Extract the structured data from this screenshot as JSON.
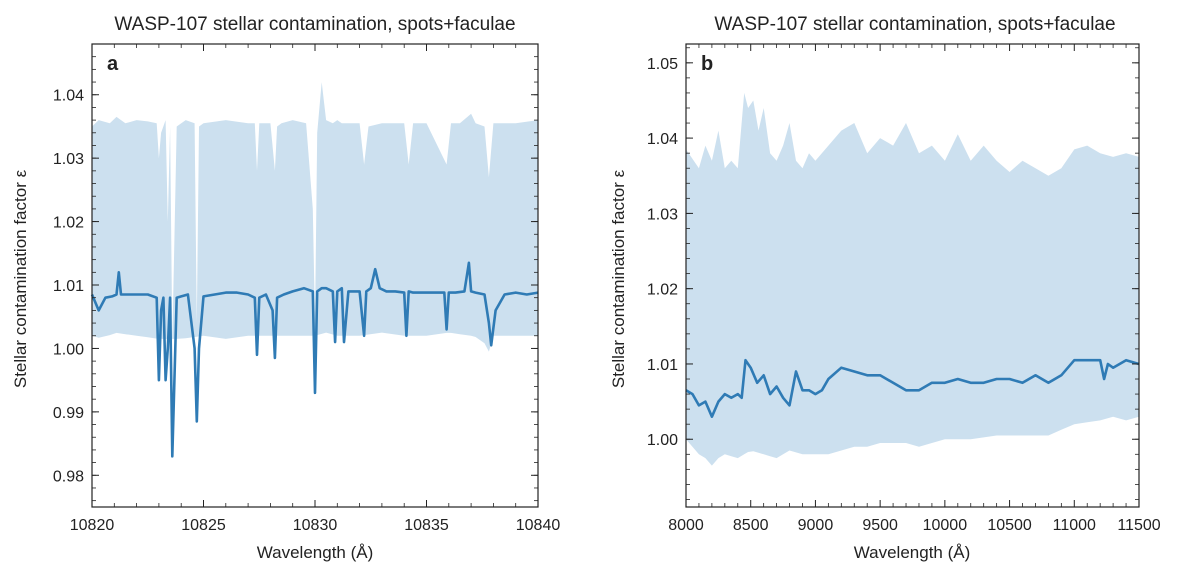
{
  "colors": {
    "band": "#cce0ef",
    "line": "#2f7bb5",
    "axis": "#222222"
  },
  "chart_data": [
    {
      "type": "line",
      "panel_label": "a",
      "title": "WASP-107 stellar contamination, spots+faculae",
      "xlabel": "Wavelength (Å)",
      "ylabel": "Stellar contamination factor ε",
      "xlim": [
        10820,
        10840
      ],
      "ylim": [
        0.975,
        1.048
      ],
      "xticks": [
        10820,
        10825,
        10830,
        10835,
        10840
      ],
      "yticks": [
        "0.98",
        "0.99",
        "1.00",
        "1.01",
        "1.02",
        "1.03",
        "1.04"
      ],
      "grid": false,
      "series": [
        {
          "role": "median",
          "x": [
            10820,
            10820.3,
            10820.6,
            10820.9,
            10821.1,
            10821.2,
            10821.3,
            10821.5,
            10822,
            10822.5,
            10822.9,
            10823.0,
            10823.1,
            10823.2,
            10823.3,
            10823.4,
            10823.5,
            10823.6,
            10823.8,
            10824,
            10824.3,
            10824.6,
            10824.7,
            10824.8,
            10825,
            10825.5,
            10826,
            10826.5,
            10827,
            10827.3,
            10827.4,
            10827.5,
            10827.8,
            10828.1,
            10828.2,
            10828.3,
            10828.6,
            10829,
            10829.5,
            10829.9,
            10830.0,
            10830.1,
            10830.3,
            10830.5,
            10830.8,
            10830.9,
            10831.0,
            10831.2,
            10831.3,
            10831.5,
            10832,
            10832.2,
            10832.3,
            10832.5,
            10832.7,
            10832.9,
            10833.2,
            10833.6,
            10834.0,
            10834.1,
            10834.2,
            10834.4,
            10834.8,
            10835.2,
            10835.8,
            10835.9,
            10836.0,
            10836.3,
            10836.7,
            10836.9,
            10837.0,
            10837.2,
            10837.6,
            10837.8,
            10837.9,
            10838.1,
            10838.5,
            10839,
            10839.5,
            10840
          ],
          "y": [
            1.0085,
            1.006,
            1.008,
            1.0082,
            1.0085,
            1.012,
            1.0085,
            1.0085,
            1.0085,
            1.0085,
            1.008,
            0.995,
            1.006,
            1.008,
            0.995,
            1.0,
            1.008,
            0.983,
            1.008,
            1.0082,
            1.0085,
            1.0,
            0.9885,
            1.0,
            1.0082,
            1.0085,
            1.0088,
            1.0088,
            1.0085,
            1.008,
            0.999,
            1.008,
            1.0085,
            1.006,
            0.9985,
            1.008,
            1.0085,
            1.009,
            1.0095,
            1.009,
            0.993,
            1.009,
            1.0095,
            1.0095,
            1.009,
            1.001,
            1.009,
            1.0095,
            1.001,
            1.009,
            1.009,
            1.002,
            1.009,
            1.0095,
            1.0125,
            1.0095,
            1.009,
            1.009,
            1.0088,
            1.002,
            1.009,
            1.0088,
            1.0088,
            1.0088,
            1.0088,
            1.003,
            1.0088,
            1.0088,
            1.009,
            1.0135,
            1.009,
            1.0088,
            1.0085,
            1.004,
            1.0005,
            1.006,
            1.0085,
            1.0088,
            1.0085,
            1.0088
          ]
        },
        {
          "role": "band_upper",
          "x": [
            10820,
            10820.3,
            10820.8,
            10821.1,
            10821.5,
            10822,
            10822.5,
            10822.9,
            10823.0,
            10823.1,
            10823.3,
            10823.4,
            10823.5,
            10823.6,
            10823.8,
            10824.2,
            10824.6,
            10824.7,
            10824.8,
            10825,
            10826,
            10827,
            10827.3,
            10827.4,
            10827.5,
            10828,
            10828.2,
            10828.3,
            10828.5,
            10829,
            10829.6,
            10829.9,
            10830.0,
            10830.1,
            10830.3,
            10830.5,
            10830.8,
            10831.0,
            10831.2,
            10832,
            10832.2,
            10832.4,
            10833,
            10834,
            10834.2,
            10834.4,
            10835,
            10835.9,
            10836.1,
            10836.5,
            10837.0,
            10837.2,
            10837.6,
            10837.8,
            10838.0,
            10838.5,
            10839,
            10840
          ],
          "y": [
            1.035,
            1.036,
            1.0355,
            1.0365,
            1.0355,
            1.036,
            1.0358,
            1.0355,
            1.03,
            1.034,
            1.036,
            1.02,
            1.035,
            1.001,
            1.035,
            1.036,
            1.0355,
            1.004,
            1.035,
            1.0355,
            1.036,
            1.0355,
            1.0355,
            1.028,
            1.0355,
            1.0355,
            1.028,
            1.035,
            1.0355,
            1.036,
            1.0355,
            1.022,
            1.004,
            1.034,
            1.042,
            1.036,
            1.0355,
            1.036,
            1.0355,
            1.0355,
            1.029,
            1.035,
            1.0355,
            1.0355,
            1.029,
            1.0355,
            1.0355,
            1.029,
            1.0355,
            1.0355,
            1.037,
            1.0355,
            1.035,
            1.027,
            1.0355,
            1.0355,
            1.0355,
            1.036
          ]
        },
        {
          "role": "band_lower",
          "x": [
            10820,
            10820.5,
            10821,
            10822,
            10823,
            10823.5,
            10824,
            10825,
            10826,
            10827,
            10828,
            10829,
            10830,
            10830.5,
            10831,
            10832,
            10833,
            10834,
            10835,
            10836,
            10837,
            10837.5,
            10837.8,
            10838,
            10839,
            10840
          ],
          "y": [
            1.002,
            1.0015,
            1.0025,
            1.002,
            1.0015,
            1.0015,
            1.0015,
            1.002,
            1.0015,
            1.002,
            1.002,
            1.002,
            1.002,
            1.0025,
            1.002,
            1.002,
            1.0025,
            1.002,
            1.002,
            1.0025,
            1.002,
            1.0015,
            0.9995,
            1.002,
            1.002,
            1.002
          ]
        }
      ]
    },
    {
      "type": "line",
      "panel_label": "b",
      "title": "WASP-107 stellar contamination, spots+faculae",
      "xlabel": "Wavelength (Å)",
      "ylabel": "Stellar contamination factor ε",
      "xlim": [
        8000,
        11500
      ],
      "ylim": [
        0.991,
        1.0525
      ],
      "xticks": [
        8000,
        8500,
        9000,
        9500,
        10000,
        10500,
        11000,
        11500
      ],
      "yticks": [
        "1.00",
        "1.01",
        "1.02",
        "1.03",
        "1.04",
        "1.05"
      ],
      "grid": false,
      "series": [
        {
          "role": "median",
          "x": [
            8000,
            8050,
            8100,
            8150,
            8200,
            8250,
            8300,
            8350,
            8400,
            8430,
            8460,
            8500,
            8550,
            8600,
            8650,
            8700,
            8750,
            8800,
            8850,
            8900,
            8950,
            9000,
            9050,
            9100,
            9200,
            9300,
            9400,
            9500,
            9600,
            9700,
            9800,
            9900,
            10000,
            10100,
            10200,
            10300,
            10400,
            10500,
            10600,
            10700,
            10800,
            10900,
            11000,
            11100,
            11200,
            11230,
            11260,
            11300,
            11400,
            11500
          ],
          "y": [
            1.0065,
            1.006,
            1.0045,
            1.005,
            1.003,
            1.005,
            1.006,
            1.0055,
            1.006,
            1.0055,
            1.0105,
            1.0095,
            1.0075,
            1.0085,
            1.006,
            1.007,
            1.0055,
            1.0045,
            1.009,
            1.0065,
            1.0065,
            1.006,
            1.0065,
            1.008,
            1.0095,
            1.009,
            1.0085,
            1.0085,
            1.0075,
            1.0065,
            1.0065,
            1.0075,
            1.0075,
            1.008,
            1.0075,
            1.0075,
            1.008,
            1.008,
            1.0075,
            1.0085,
            1.0075,
            1.0085,
            1.0105,
            1.0105,
            1.0105,
            1.008,
            1.01,
            1.0095,
            1.0105,
            1.01
          ]
        },
        {
          "role": "band_upper",
          "x": [
            8000,
            8100,
            8150,
            8200,
            8250,
            8300,
            8350,
            8400,
            8450,
            8480,
            8520,
            8560,
            8600,
            8650,
            8700,
            8750,
            8800,
            8850,
            8900,
            8950,
            9000,
            9100,
            9200,
            9300,
            9400,
            9500,
            9600,
            9700,
            9800,
            9900,
            10000,
            10100,
            10200,
            10300,
            10400,
            10500,
            10600,
            10700,
            10800,
            10900,
            11000,
            11100,
            11200,
            11300,
            11400,
            11500
          ],
          "y": [
            1.0385,
            1.036,
            1.039,
            1.037,
            1.041,
            1.036,
            1.037,
            1.036,
            1.046,
            1.044,
            1.045,
            1.041,
            1.044,
            1.038,
            1.037,
            1.039,
            1.042,
            1.037,
            1.036,
            1.038,
            1.037,
            1.039,
            1.041,
            1.042,
            1.038,
            1.04,
            1.039,
            1.042,
            1.038,
            1.039,
            1.037,
            1.0405,
            1.037,
            1.039,
            1.037,
            1.0355,
            1.037,
            1.036,
            1.035,
            1.036,
            1.0385,
            1.039,
            1.038,
            1.0375,
            1.038,
            1.0375
          ]
        },
        {
          "role": "band_lower",
          "x": [
            8000,
            8050,
            8100,
            8150,
            8200,
            8250,
            8300,
            8400,
            8500,
            8600,
            8700,
            8800,
            8900,
            9000,
            9100,
            9200,
            9300,
            9400,
            9500,
            9600,
            9700,
            9800,
            9900,
            10000,
            10200,
            10400,
            10600,
            10800,
            11000,
            11200,
            11300,
            11400,
            11500
          ],
          "y": [
            1.0,
            0.9985,
            0.998,
            0.9975,
            0.9965,
            0.9975,
            0.998,
            0.9975,
            0.9985,
            0.998,
            0.9975,
            0.9985,
            0.998,
            0.998,
            0.998,
            0.9985,
            0.999,
            0.999,
            0.9995,
            0.9995,
            0.9995,
            0.999,
            0.9995,
            1.0,
            1.0,
            1.0005,
            1.0005,
            1.0005,
            1.002,
            1.0025,
            1.003,
            1.0025,
            1.003
          ]
        }
      ]
    }
  ]
}
